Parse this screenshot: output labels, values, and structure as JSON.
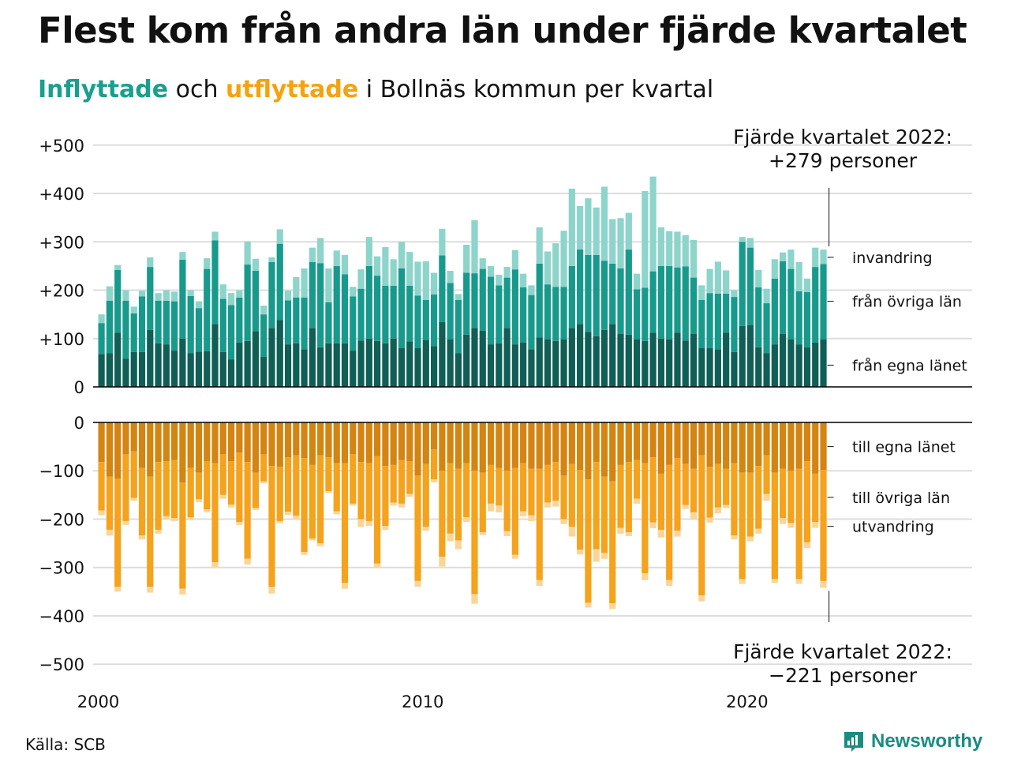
{
  "header": {
    "title": "Flest kom från andra län under fjärde kvartalet",
    "subtitle_in": "Inflyttade",
    "subtitle_mid": " och ",
    "subtitle_out": "utflyttade",
    "subtitle_rest": " i Bollnäs kommun per kvartal"
  },
  "footer": {
    "source": "Källa: SCB",
    "brand": "Newsworthy"
  },
  "colors": {
    "in_egna": "#0f5f56",
    "in_ovriga": "#179a8c",
    "in_invandring": "#8dd4cb",
    "out_egna": "#d48410",
    "out_ovriga": "#f5a21c",
    "out_utvandring": "#fbd596",
    "grid": "#dddddd",
    "axis": "#000000"
  },
  "chart_data": {
    "type": "bar",
    "stacked": true,
    "x_start": "2000 Q1",
    "x_ticks": [
      "2000",
      "2010",
      "2020"
    ],
    "y_ticks_top": [
      "+500",
      "+400",
      "+300",
      "+200",
      "+100",
      "0"
    ],
    "y_ticks_bottom": [
      "0",
      "−100",
      "−200",
      "−300",
      "−400",
      "−500"
    ],
    "ylim_top": [
      0,
      500
    ],
    "ylim_bottom": [
      -500,
      0
    ],
    "annotation_top": [
      "Fjärde kvartalet 2022:",
      "+279 personer"
    ],
    "annotation_bottom": [
      "Fjärde kvartalet 2022:",
      "−221 personer"
    ],
    "in_series_labels": [
      "invandring",
      "från övriga län",
      "från egna länet"
    ],
    "out_series_labels": [
      "till egna länet",
      "till övriga län",
      "utvandring"
    ],
    "inflyttade": {
      "fran_egna_lanet": [
        68,
        70,
        112,
        58,
        72,
        72,
        118,
        90,
        88,
        75,
        100,
        70,
        73,
        74,
        130,
        72,
        57,
        92,
        95,
        115,
        62,
        122,
        138,
        88,
        90,
        78,
        122,
        82,
        90,
        90,
        90,
        75,
        96,
        100,
        95,
        90,
        100,
        80,
        94,
        80,
        97,
        84,
        134,
        98,
        70,
        108,
        122,
        116,
        88,
        90,
        122,
        88,
        92,
        78,
        102,
        98,
        95,
        98,
        122,
        130,
        114,
        105,
        118,
        130,
        110,
        108,
        98,
        95,
        112,
        100,
        98,
        112,
        96,
        110,
        80,
        80,
        78,
        112,
        72,
        126,
        128,
        82,
        70,
        88,
        110,
        98,
        88,
        82,
        92,
        98
      ],
      "fran_ovriga_lan": [
        64,
        108,
        130,
        120,
        80,
        115,
        130,
        88,
        90,
        102,
        163,
        118,
        90,
        170,
        173,
        110,
        112,
        93,
        158,
        125,
        88,
        136,
        158,
        91,
        95,
        107,
        136,
        174,
        85,
        160,
        143,
        112,
        107,
        150,
        135,
        119,
        109,
        165,
        115,
        109,
        83,
        107,
        138,
        117,
        110,
        128,
        113,
        128,
        140,
        120,
        104,
        155,
        114,
        112,
        153,
        114,
        112,
        109,
        128,
        154,
        159,
        168,
        143,
        125,
        135,
        176,
        104,
        110,
        127,
        150,
        152,
        135,
        153,
        116,
        100,
        114,
        115,
        81,
        114,
        174,
        160,
        124,
        103,
        136,
        150,
        146,
        110,
        114,
        156,
        156
      ],
      "invandring": [
        18,
        30,
        10,
        22,
        14,
        12,
        20,
        16,
        22,
        20,
        16,
        12,
        14,
        22,
        18,
        30,
        25,
        15,
        48,
        25,
        18,
        10,
        30,
        20,
        42,
        60,
        30,
        52,
        70,
        32,
        40,
        20,
        40,
        60,
        40,
        80,
        55,
        55,
        70,
        70,
        80,
        45,
        55,
        25,
        12,
        58,
        110,
        22,
        22,
        22,
        22,
        40,
        28,
        20,
        75,
        68,
        90,
        116,
        160,
        90,
        117,
        98,
        153,
        92,
        104,
        76,
        32,
        200,
        196,
        80,
        72,
        74,
        65,
        78,
        30,
        50,
        66,
        48,
        14,
        10,
        20,
        36,
        30,
        40,
        18,
        40,
        60,
        28,
        40,
        30
      ]
    },
    "utflyttade": {
      "till_egna_lanet": [
        82,
        112,
        116,
        66,
        60,
        94,
        112,
        82,
        80,
        78,
        124,
        94,
        104,
        80,
        84,
        66,
        80,
        62,
        82,
        104,
        66,
        90,
        92,
        72,
        68,
        74,
        88,
        68,
        72,
        84,
        84,
        66,
        82,
        84,
        70,
        90,
        88,
        78,
        80,
        110,
        86,
        56,
        100,
        84,
        96,
        84,
        100,
        104,
        88,
        94,
        100,
        94,
        84,
        96,
        96,
        88,
        82,
        110,
        86,
        98,
        118,
        82,
        112,
        122,
        88,
        82,
        78,
        84,
        72,
        106,
        88,
        74,
        86,
        96,
        68,
        92,
        86,
        96,
        84,
        104,
        104,
        90,
        68,
        104,
        96,
        100,
        96,
        80,
        106,
        98
      ],
      "till_ovriga_lan": [
        100,
        110,
        224,
        138,
        96,
        140,
        228,
        140,
        114,
        120,
        220,
        102,
        55,
        100,
        205,
        84,
        90,
        144,
        200,
        73,
        56,
        250,
        112,
        113,
        125,
        194,
        152,
        182,
        70,
        100,
        248,
        102,
        118,
        120,
        222,
        124,
        78,
        90,
        68,
        218,
        130,
        62,
        178,
        146,
        148,
        112,
        255,
        123,
        80,
        78,
        125,
        180,
        100,
        96,
        230,
        78,
        80,
        90,
        130,
        165,
        255,
        180,
        158,
        252,
        130,
        145,
        80,
        228,
        135,
        116,
        238,
        150,
        85,
        90,
        290,
        105,
        90,
        75,
        150,
        220,
        132,
        130,
        80,
        220,
        102,
        108,
        228,
        168,
        100,
        230
      ],
      "utvandring": [
        10,
        12,
        10,
        8,
        6,
        8,
        12,
        8,
        6,
        6,
        12,
        6,
        6,
        6,
        10,
        8,
        6,
        6,
        12,
        4,
        4,
        14,
        4,
        6,
        8,
        6,
        4,
        6,
        4,
        6,
        12,
        4,
        16,
        10,
        8,
        8,
        6,
        8,
        6,
        12,
        8,
        6,
        20,
        16,
        18,
        10,
        20,
        6,
        16,
        14,
        10,
        8,
        10,
        12,
        12,
        10,
        12,
        10,
        20,
        10,
        10,
        26,
        12,
        12,
        12,
        8,
        10,
        14,
        12,
        16,
        12,
        12,
        8,
        14,
        12,
        10,
        12,
        6,
        8,
        10,
        10,
        10,
        14,
        8,
        12,
        10,
        10,
        12,
        12,
        14
      ]
    }
  }
}
